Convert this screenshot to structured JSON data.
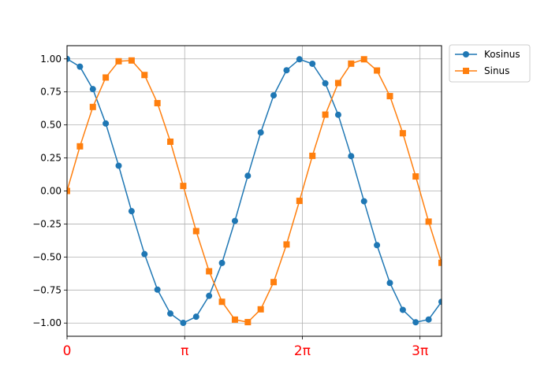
{
  "chart_data": {
    "type": "line",
    "title": "",
    "xlabel": "",
    "ylabel": "",
    "xlim": [
      0,
      10
    ],
    "ylim": [
      -1.1,
      1.1
    ],
    "grid": true,
    "legend_position": "outside-top-right",
    "xtick_label_color": "#ff0000",
    "xticks": [
      {
        "value": 0,
        "label": "0"
      },
      {
        "value": 3.14159,
        "label": "π"
      },
      {
        "value": 6.28319,
        "label": "2π"
      },
      {
        "value": 9.42478,
        "label": "3π"
      }
    ],
    "yticks": [
      {
        "value": 1.0,
        "label": "1.00"
      },
      {
        "value": 0.75,
        "label": "0.75"
      },
      {
        "value": 0.5,
        "label": "0.50"
      },
      {
        "value": 0.25,
        "label": "0.25"
      },
      {
        "value": 0.0,
        "label": "0.00"
      },
      {
        "value": -0.25,
        "label": "−0.25"
      },
      {
        "value": -0.5,
        "label": "−0.50"
      },
      {
        "value": -0.75,
        "label": "−0.75"
      },
      {
        "value": -1.0,
        "label": "−1.00"
      }
    ],
    "x": [
      0.0,
      0.345,
      0.69,
      1.034,
      1.379,
      1.724,
      2.069,
      2.414,
      2.759,
      3.103,
      3.448,
      3.793,
      4.138,
      4.483,
      4.828,
      5.172,
      5.517,
      5.862,
      6.207,
      6.552,
      6.897,
      7.241,
      7.586,
      7.931,
      8.276,
      8.621,
      8.966,
      9.31,
      9.655,
      10.0
    ],
    "series": [
      {
        "name": "Kosinus",
        "marker": "circle",
        "color": "#1f77b4",
        "values": [
          1.0,
          0.941,
          0.771,
          0.511,
          0.191,
          -0.153,
          -0.478,
          -0.747,
          -0.928,
          -0.999,
          -0.952,
          -0.794,
          -0.545,
          -0.227,
          0.115,
          0.443,
          0.724,
          0.914,
          0.997,
          0.963,
          0.815,
          0.577,
          0.264,
          -0.078,
          -0.41,
          -0.696,
          -0.9,
          -0.994,
          -0.973,
          -0.839
        ]
      },
      {
        "name": "Sinus",
        "marker": "square",
        "color": "#ff7f0e",
        "values": [
          0.0,
          0.338,
          0.636,
          0.859,
          0.982,
          0.988,
          0.878,
          0.665,
          0.373,
          0.038,
          -0.304,
          -0.608,
          -0.839,
          -0.974,
          -0.993,
          -0.896,
          -0.69,
          -0.405,
          -0.075,
          0.266,
          0.578,
          0.817,
          0.964,
          0.997,
          0.912,
          0.718,
          0.437,
          0.11,
          -0.232,
          -0.544
        ]
      }
    ]
  }
}
